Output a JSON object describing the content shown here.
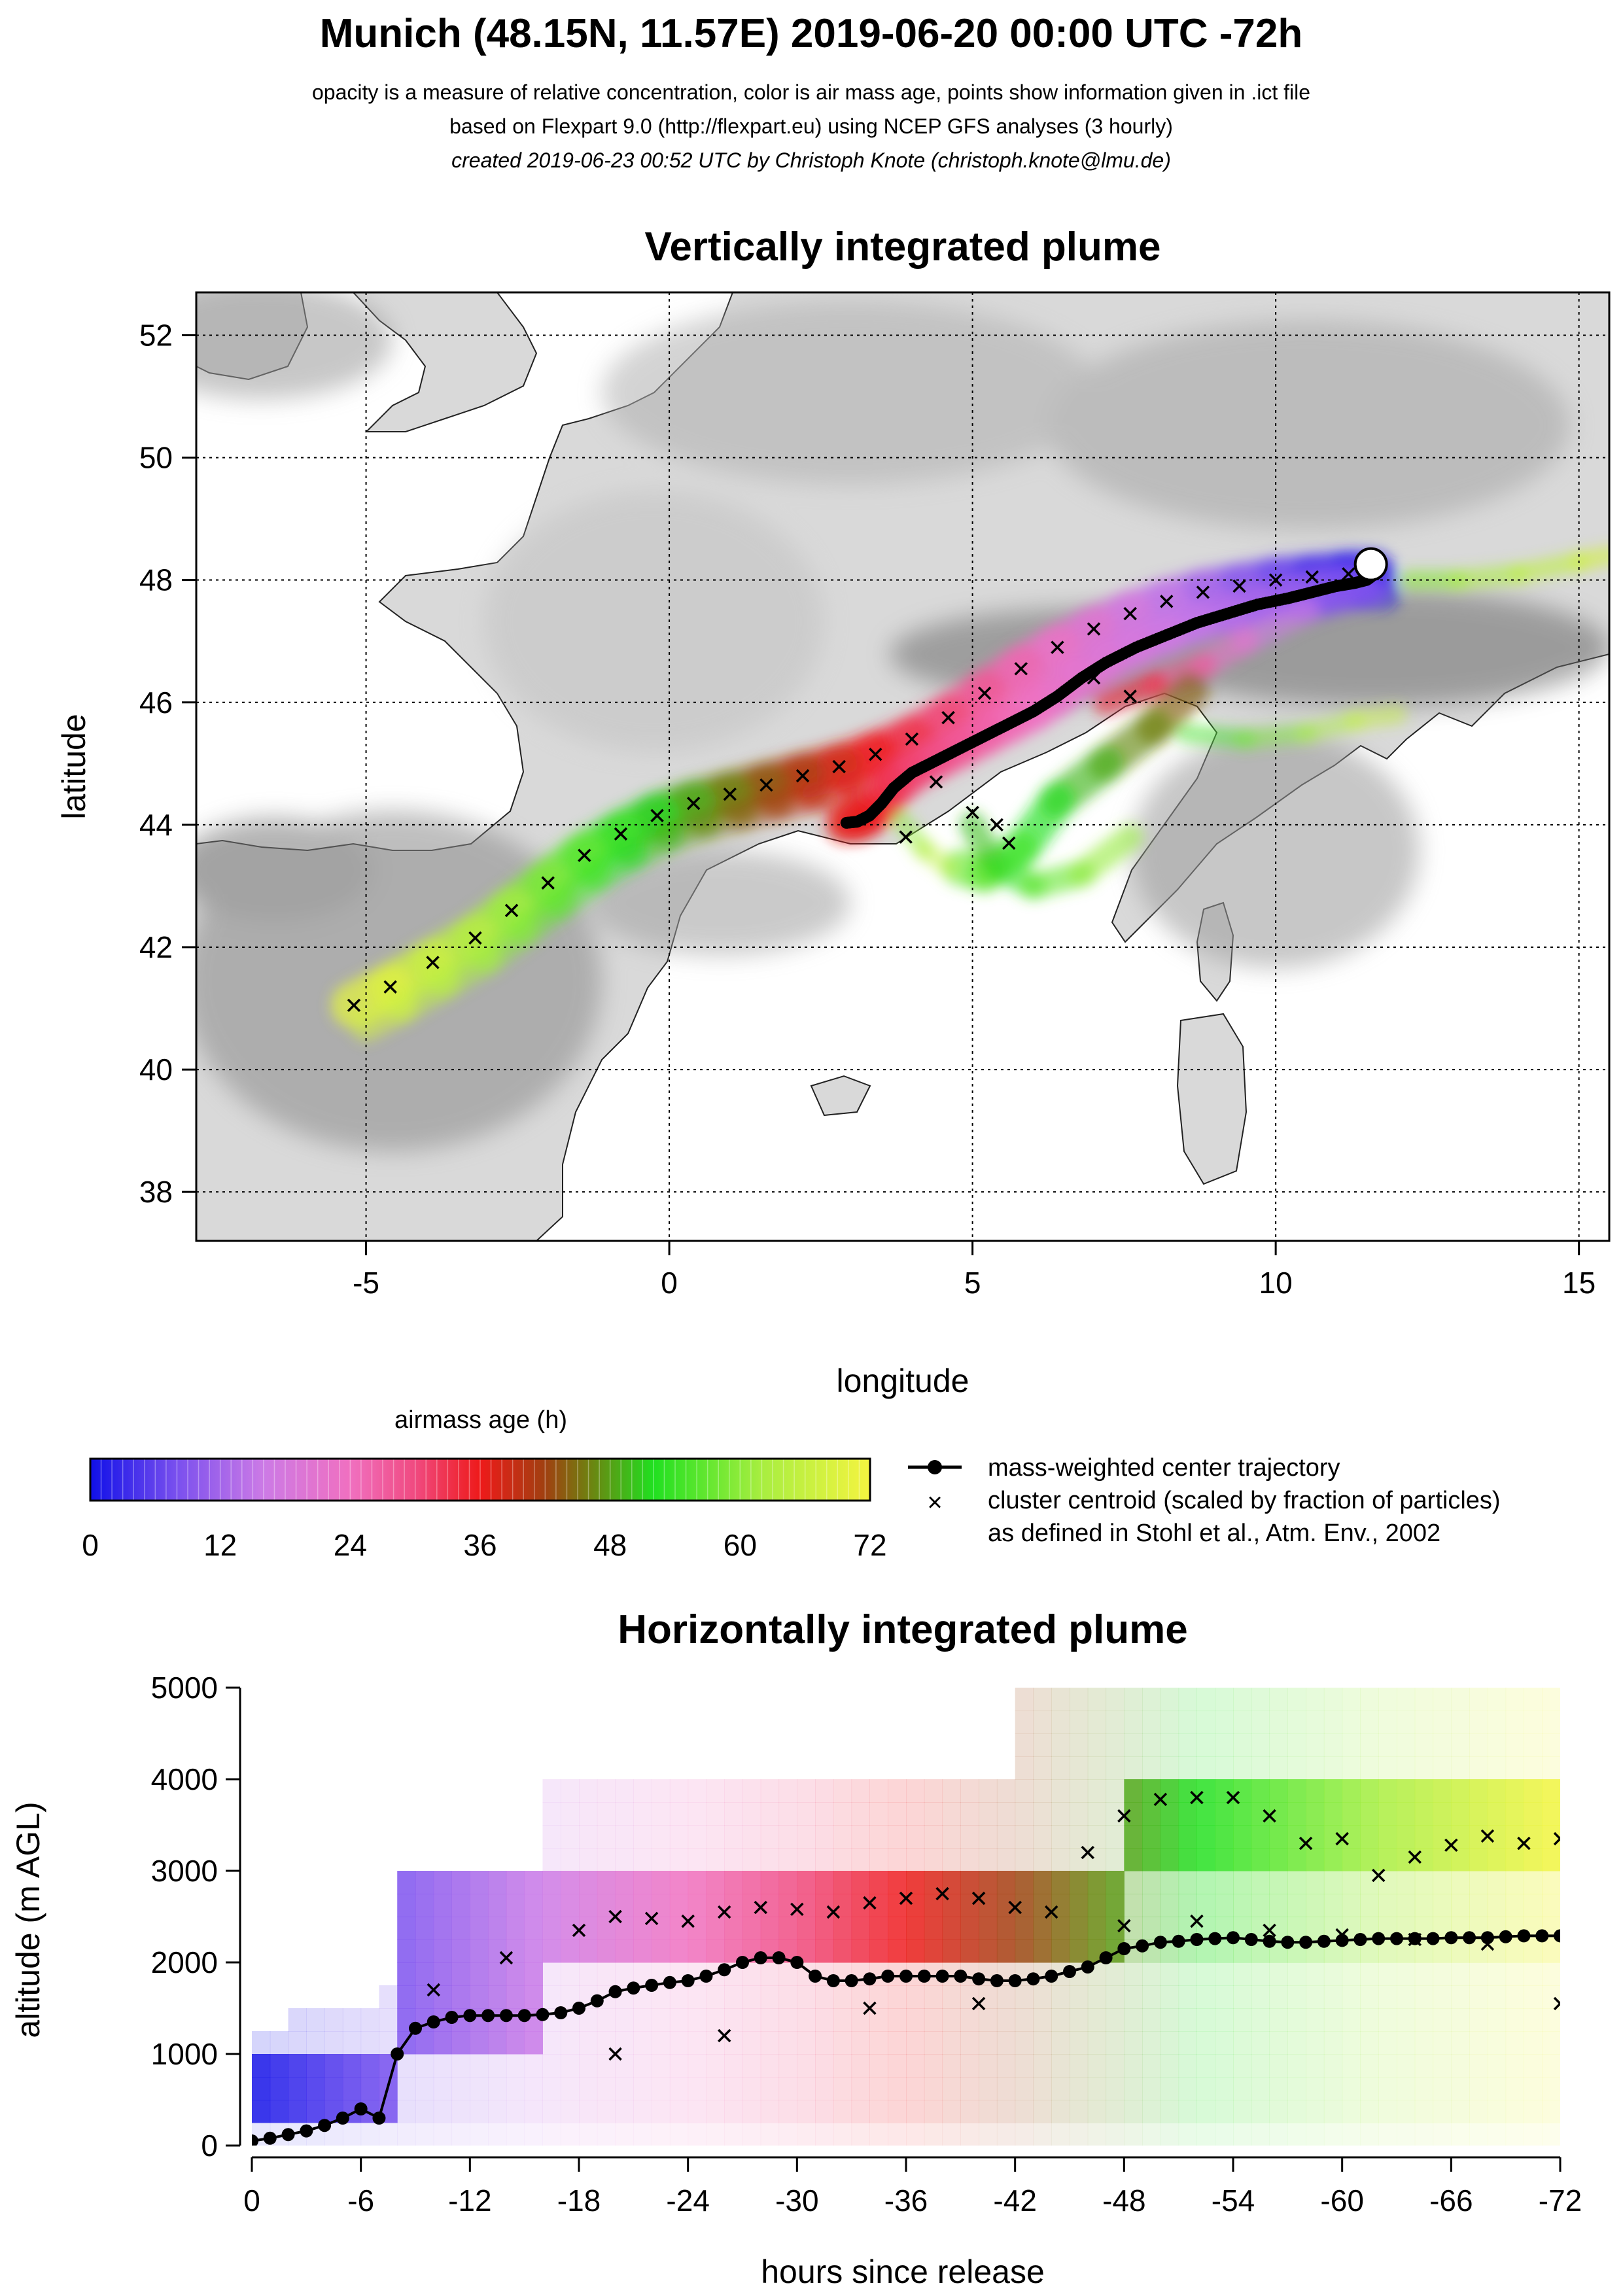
{
  "header": {
    "title": "Munich (48.15N, 11.57E) 2019-06-20 00:00 UTC -72h",
    "line1": "opacity is a measure of relative concentration, color is air mass age, points show information given in .ict file",
    "line2": "based on Flexpart 9.0 (http://flexpart.eu) using NCEP GFS analyses (3 hourly)",
    "line3": "created 2019-06-23 00:52 UTC by Christoph Knote (christoph.knote@lmu.de)"
  },
  "colorbar": {
    "title": "airmass age (h)",
    "ticks": [
      "0",
      "12",
      "24",
      "36",
      "48",
      "60",
      "72"
    ],
    "min": 0,
    "max": 72,
    "stops": [
      {
        "v": 0,
        "color": "#1010e8"
      },
      {
        "v": 8,
        "color": "#7a50ee"
      },
      {
        "v": 16,
        "color": "#cc7ae6"
      },
      {
        "v": 24,
        "color": "#f070c0"
      },
      {
        "v": 30,
        "color": "#f04a80"
      },
      {
        "v": 36,
        "color": "#ee1a1a"
      },
      {
        "v": 42,
        "color": "#a04010"
      },
      {
        "v": 46,
        "color": "#708010"
      },
      {
        "v": 52,
        "color": "#20e020"
      },
      {
        "v": 62,
        "color": "#a8ee40"
      },
      {
        "v": 72,
        "color": "#f4f440"
      }
    ]
  },
  "legend": {
    "center": "mass-weighted center trajectory",
    "cluster_line1": "cluster centroid (scaled by fraction of particles)",
    "cluster_line2": "as defined in Stohl et al., Atm. Env., 2002"
  },
  "chart_data": [
    {
      "type": "scatter",
      "title": "Vertically integrated plume",
      "xlabel": "longitude",
      "ylabel": "latitude",
      "xlim": [
        -7.8,
        15.5
      ],
      "ylim": [
        37.2,
        52.7
      ],
      "xticks": [
        -5,
        0,
        5,
        10,
        15
      ],
      "yticks": [
        38,
        40,
        42,
        44,
        46,
        48,
        50,
        52
      ],
      "grid": true,
      "release": {
        "lon": 11.57,
        "lat": 48.15
      },
      "center_trajectory": {
        "lon": [
          11.57,
          11.5,
          11.3,
          11.0,
          10.6,
          10.2,
          9.7,
          9.2,
          8.7,
          8.2,
          7.7,
          7.2,
          6.8,
          6.4,
          6.0,
          5.6,
          5.2,
          4.8,
          4.4,
          4.0,
          3.7,
          3.5,
          3.3,
          3.1,
          2.9
        ],
        "lat": [
          48.05,
          48.0,
          47.95,
          47.9,
          47.8,
          47.7,
          47.6,
          47.45,
          47.3,
          47.1,
          46.9,
          46.65,
          46.4,
          46.1,
          45.85,
          45.65,
          45.45,
          45.25,
          45.05,
          44.85,
          44.6,
          44.35,
          44.15,
          44.05,
          44.03
        ]
      },
      "cluster_centroids": {
        "lon": [
          -5.2,
          -4.6,
          -3.9,
          -3.2,
          -2.6,
          -2.0,
          -1.4,
          -0.8,
          -0.2,
          0.4,
          1.0,
          1.6,
          2.2,
          2.8,
          3.4,
          4.0,
          4.6,
          5.2,
          5.8,
          6.4,
          7.0,
          7.6,
          8.2,
          8.8,
          9.4,
          10.0,
          10.6,
          11.2,
          11.6,
          5.0,
          5.4,
          5.6,
          7.0,
          7.6,
          4.4,
          3.9
        ],
        "lat": [
          41.05,
          41.35,
          41.75,
          42.15,
          42.6,
          43.05,
          43.5,
          43.85,
          44.15,
          44.35,
          44.5,
          44.65,
          44.8,
          44.95,
          45.15,
          45.4,
          45.75,
          46.15,
          46.55,
          46.9,
          47.2,
          47.45,
          47.65,
          47.8,
          47.9,
          48.0,
          48.05,
          48.1,
          48.1,
          44.2,
          44.0,
          43.7,
          46.4,
          46.1,
          44.7,
          43.8
        ]
      }
    },
    {
      "type": "scatter",
      "title": "Horizontally integrated plume",
      "xlabel": "hours since release",
      "ylabel": "altitude (m AGL)",
      "xlim": [
        0,
        -72
      ],
      "ylim": [
        0,
        5000
      ],
      "xticks": [
        "0",
        "-6",
        "-12",
        "-18",
        "-24",
        "-30",
        "-36",
        "-42",
        "-48",
        "-54",
        "-60",
        "-66",
        "-72"
      ],
      "yticks": [
        "0",
        "1000",
        "2000",
        "3000",
        "4000",
        "5000"
      ],
      "center_trajectory": {
        "hours": [
          0,
          -1,
          -2,
          -3,
          -4,
          -5,
          -6,
          -7,
          -8,
          -9,
          -10,
          -11,
          -12,
          -13,
          -14,
          -15,
          -16,
          -17,
          -18,
          -19,
          -20,
          -21,
          -22,
          -23,
          -24,
          -25,
          -26,
          -27,
          -28,
          -29,
          -30,
          -31,
          -32,
          -33,
          -34,
          -35,
          -36,
          -37,
          -38,
          -39,
          -40,
          -41,
          -42,
          -43,
          -44,
          -45,
          -46,
          -47,
          -48,
          -49,
          -50,
          -51,
          -52,
          -53,
          -54,
          -55,
          -56,
          -57,
          -58,
          -59,
          -60,
          -61,
          -62,
          -63,
          -64,
          -65,
          -66,
          -67,
          -68,
          -69,
          -70,
          -71,
          -72
        ],
        "altitude": [
          50,
          80,
          120,
          160,
          220,
          300,
          400,
          300,
          1000,
          1280,
          1350,
          1400,
          1420,
          1420,
          1420,
          1420,
          1430,
          1450,
          1500,
          1580,
          1680,
          1720,
          1750,
          1780,
          1800,
          1850,
          1920,
          2000,
          2050,
          2050,
          2000,
          1850,
          1800,
          1800,
          1820,
          1850,
          1850,
          1850,
          1850,
          1850,
          1820,
          1800,
          1800,
          1820,
          1850,
          1900,
          1950,
          2050,
          2150,
          2180,
          2220,
          2230,
          2250,
          2260,
          2270,
          2250,
          2230,
          2220,
          2220,
          2230,
          2240,
          2250,
          2260,
          2260,
          2260,
          2260,
          2270,
          2270,
          2270,
          2280,
          2290,
          2290,
          2290
        ]
      },
      "cluster_centroids": {
        "hours": [
          -10,
          -14,
          -18,
          -20,
          -22,
          -24,
          -26,
          -28,
          -30,
          -32,
          -34,
          -36,
          -38,
          -40,
          -42,
          -44,
          -46,
          -48,
          -50,
          -52,
          -54,
          -56,
          -58,
          -60,
          -62,
          -64,
          -66,
          -68,
          -70,
          -72,
          -48,
          -52,
          -56,
          -60,
          -64,
          -68,
          -72,
          -20,
          -26,
          -34,
          -40
        ],
        "altitude": [
          1700,
          2050,
          2350,
          2500,
          2480,
          2450,
          2550,
          2600,
          2580,
          2550,
          2650,
          2700,
          2750,
          2700,
          2600,
          2550,
          3200,
          3600,
          3780,
          3800,
          3800,
          3600,
          3300,
          3350,
          2950,
          3150,
          3280,
          3380,
          3300,
          3350,
          2400,
          2450,
          2350,
          2300,
          2250,
          2200,
          1550,
          1000,
          1200,
          1500,
          1550
        ]
      }
    }
  ]
}
